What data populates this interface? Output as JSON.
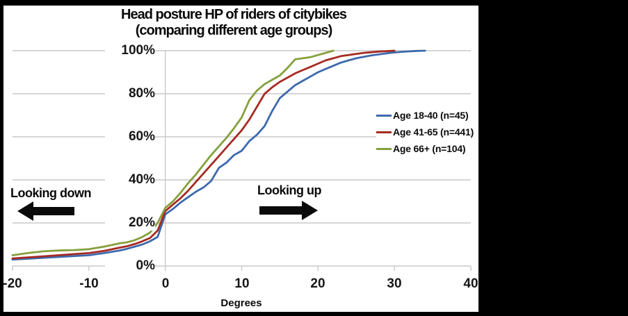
{
  "frame": {
    "border_color": "#000000",
    "panel_background": "#ffffff"
  },
  "title": {
    "line1": "Head posture HP of riders of citybikes",
    "line2": "(comparing different age groups)"
  },
  "annotations": {
    "looking_down": "Looking down",
    "looking_up": "Looking up"
  },
  "chart_data": {
    "type": "line",
    "subtype": "cumulative-distribution",
    "title": "Head posture HP of riders of citybikes (comparing different age groups)",
    "xlabel": "Degrees",
    "ylabel": "",
    "xlim": [
      -20,
      40
    ],
    "ylim": [
      0,
      100
    ],
    "x_ticks": [
      -20,
      -10,
      0,
      10,
      20,
      30,
      40
    ],
    "y_ticks": [
      0,
      20,
      40,
      60,
      80,
      100
    ],
    "y_tick_suffix": "%",
    "grid": "horizontal gridlines at 20% steps, vertical gridline at 0 degrees",
    "grid_color": "#c9c9c9",
    "arrow_color": "#0a0a0a",
    "legend_position": "middle-right",
    "series": [
      {
        "id": "age-18-40",
        "name": "Age 18-40 (n=45)",
        "color": "#3c69ad",
        "points": [
          [
            -20,
            3
          ],
          [
            -18,
            3.4
          ],
          [
            -16,
            3.8
          ],
          [
            -14,
            4.2
          ],
          [
            -12,
            4.6
          ],
          [
            -10,
            5
          ],
          [
            -8,
            6
          ],
          [
            -6,
            7.2
          ],
          [
            -5,
            8
          ],
          [
            -4,
            9
          ],
          [
            -3,
            10
          ],
          [
            -2,
            11.5
          ],
          [
            -1,
            13.5
          ],
          [
            0,
            24
          ],
          [
            1,
            26.5
          ],
          [
            2,
            29.5
          ],
          [
            3,
            32
          ],
          [
            4,
            34.5
          ],
          [
            5,
            36.5
          ],
          [
            6,
            39.5
          ],
          [
            7,
            45.5
          ],
          [
            8,
            48
          ],
          [
            9,
            51.5
          ],
          [
            10,
            53.5
          ],
          [
            11,
            58
          ],
          [
            12,
            61
          ],
          [
            13,
            65
          ],
          [
            14,
            72
          ],
          [
            15,
            78
          ],
          [
            16,
            81
          ],
          [
            17,
            84
          ],
          [
            18,
            86
          ],
          [
            19,
            88
          ],
          [
            20,
            90
          ],
          [
            21,
            91.5
          ],
          [
            22,
            93
          ],
          [
            23,
            94.5
          ],
          [
            24,
            95.5
          ],
          [
            25,
            96.5
          ],
          [
            26,
            97.2
          ],
          [
            27,
            97.8
          ],
          [
            28,
            98.3
          ],
          [
            29,
            98.8
          ],
          [
            30,
            99.2
          ],
          [
            31,
            99.5
          ],
          [
            32,
            99.7
          ],
          [
            33,
            99.9
          ],
          [
            34,
            100
          ]
        ]
      },
      {
        "id": "age-41-65",
        "name": "Age 41-65 (n=441)",
        "color": "#a52a21",
        "points": [
          [
            -20,
            3.5
          ],
          [
            -18,
            4
          ],
          [
            -16,
            4.5
          ],
          [
            -14,
            5
          ],
          [
            -12,
            5.5
          ],
          [
            -10,
            6
          ],
          [
            -8,
            7
          ],
          [
            -6,
            8.5
          ],
          [
            -5,
            9.2
          ],
          [
            -4,
            10.2
          ],
          [
            -3,
            11.5
          ],
          [
            -2,
            13
          ],
          [
            -1,
            16.5
          ],
          [
            0,
            25.5
          ],
          [
            1,
            28.5
          ],
          [
            2,
            31.5
          ],
          [
            3,
            35
          ],
          [
            4,
            39
          ],
          [
            5,
            43
          ],
          [
            6,
            47
          ],
          [
            7,
            51
          ],
          [
            8,
            55
          ],
          [
            9,
            59
          ],
          [
            10,
            63
          ],
          [
            11,
            68
          ],
          [
            12,
            74
          ],
          [
            13,
            80
          ],
          [
            14,
            83
          ],
          [
            15,
            85.5
          ],
          [
            16,
            87.5
          ],
          [
            17,
            89.5
          ],
          [
            18,
            91
          ],
          [
            19,
            92.5
          ],
          [
            20,
            94
          ],
          [
            21,
            95.5
          ],
          [
            22,
            96.5
          ],
          [
            23,
            97.5
          ],
          [
            24,
            98
          ],
          [
            25,
            98.5
          ],
          [
            26,
            99
          ],
          [
            27,
            99.3
          ],
          [
            28,
            99.6
          ],
          [
            29,
            99.8
          ],
          [
            30,
            100
          ]
        ]
      },
      {
        "id": "age-66-plus",
        "name": "Age 66+ (n=104)",
        "color": "#85a03c",
        "points": [
          [
            -20,
            5
          ],
          [
            -18,
            6
          ],
          [
            -16,
            6.8
          ],
          [
            -14,
            7.2
          ],
          [
            -12,
            7.4
          ],
          [
            -10,
            7.8
          ],
          [
            -8,
            9
          ],
          [
            -6,
            10.5
          ],
          [
            -5,
            11
          ],
          [
            -4,
            12
          ],
          [
            -3,
            13.5
          ],
          [
            -2,
            15.5
          ],
          [
            -1,
            20
          ],
          [
            0,
            27
          ],
          [
            1,
            30
          ],
          [
            2,
            34
          ],
          [
            3,
            38.5
          ],
          [
            4,
            42.5
          ],
          [
            5,
            47
          ],
          [
            6,
            51.5
          ],
          [
            7,
            55.5
          ],
          [
            8,
            59.5
          ],
          [
            9,
            64
          ],
          [
            10,
            69
          ],
          [
            11,
            77
          ],
          [
            12,
            81.5
          ],
          [
            13,
            84.5
          ],
          [
            14,
            86.5
          ],
          [
            15,
            88.5
          ],
          [
            16,
            92
          ],
          [
            17,
            96
          ],
          [
            18,
            96.5
          ],
          [
            19,
            97
          ],
          [
            20,
            98
          ],
          [
            21,
            99
          ],
          [
            22,
            100
          ]
        ]
      }
    ]
  }
}
